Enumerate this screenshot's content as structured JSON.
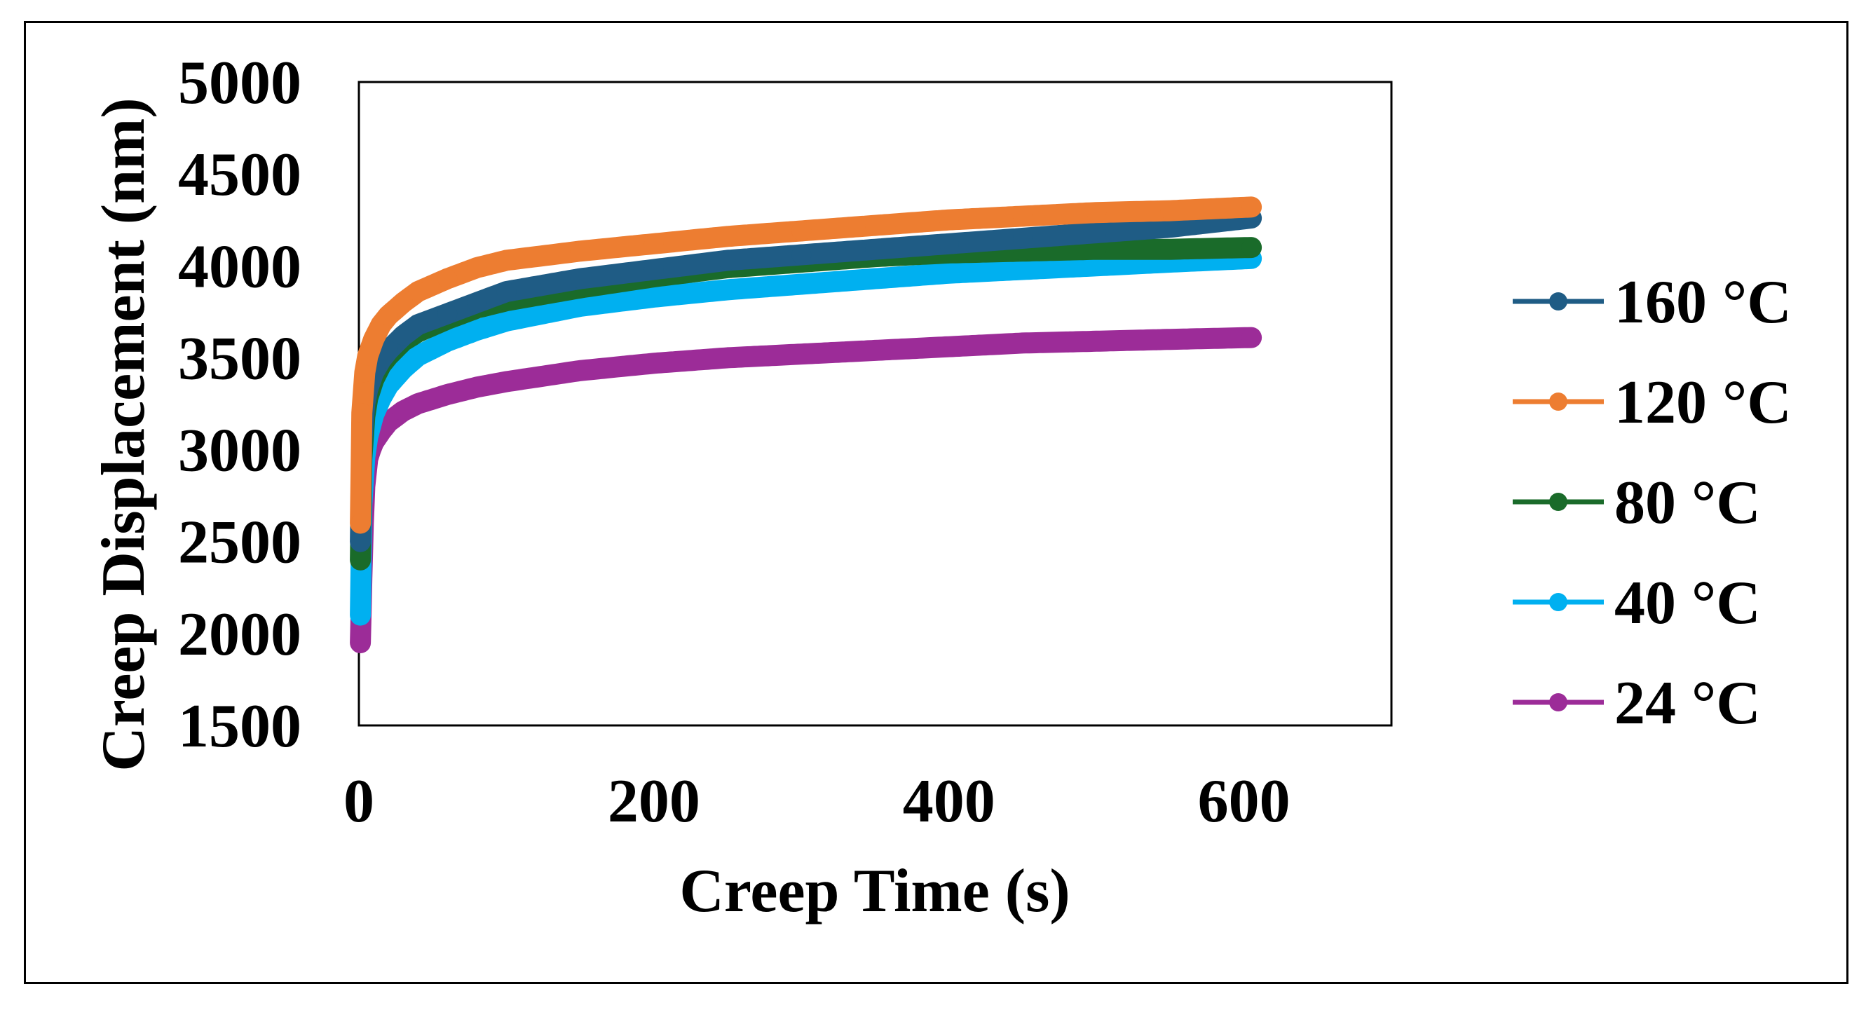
{
  "chart_data": {
    "type": "line",
    "xlabel": "Creep Time (s)",
    "ylabel": "Creep Displacement (nm)",
    "xlim": [
      0,
      700
    ],
    "ylim": [
      1500,
      5000
    ],
    "xticks": [
      0,
      200,
      400,
      600
    ],
    "yticks": [
      1500,
      2000,
      2500,
      3000,
      3500,
      4000,
      4500,
      5000
    ],
    "legend_position": "right",
    "grid": false,
    "series": [
      {
        "name": "160 °C",
        "color": "#1f5c85",
        "x": [
          1,
          2,
          4,
          6,
          10,
          15,
          20,
          30,
          40,
          60,
          80,
          100,
          150,
          200,
          250,
          300,
          350,
          400,
          450,
          500,
          550,
          605
        ],
        "y": [
          2500,
          3050,
          3250,
          3330,
          3420,
          3490,
          3540,
          3620,
          3680,
          3740,
          3800,
          3860,
          3930,
          3980,
          4030,
          4060,
          4090,
          4120,
          4150,
          4180,
          4210,
          4260
        ]
      },
      {
        "name": "120 °C",
        "color": "#ed7d31",
        "x": [
          1,
          2,
          4,
          6,
          10,
          15,
          20,
          30,
          40,
          60,
          80,
          100,
          150,
          200,
          250,
          300,
          350,
          400,
          450,
          500,
          550,
          605
        ],
        "y": [
          2600,
          3200,
          3420,
          3510,
          3600,
          3680,
          3730,
          3800,
          3860,
          3930,
          3990,
          4030,
          4080,
          4120,
          4160,
          4190,
          4220,
          4250,
          4270,
          4290,
          4300,
          4320
        ]
      },
      {
        "name": "80 °C",
        "color": "#1a6b2a",
        "x": [
          1,
          2,
          4,
          6,
          10,
          15,
          20,
          30,
          40,
          60,
          80,
          100,
          150,
          200,
          250,
          300,
          350,
          400,
          450,
          500,
          550,
          605
        ],
        "y": [
          2400,
          2950,
          3180,
          3280,
          3380,
          3460,
          3510,
          3590,
          3640,
          3710,
          3770,
          3810,
          3880,
          3940,
          3990,
          4020,
          4050,
          4070,
          4080,
          4090,
          4090,
          4100
        ]
      },
      {
        "name": "40 °C",
        "color": "#00b0f0",
        "x": [
          1,
          2,
          4,
          6,
          10,
          15,
          20,
          30,
          40,
          60,
          80,
          100,
          150,
          200,
          250,
          300,
          350,
          400,
          450,
          500,
          550,
          605
        ],
        "y": [
          2100,
          2700,
          2960,
          3070,
          3190,
          3280,
          3350,
          3440,
          3510,
          3590,
          3650,
          3700,
          3780,
          3830,
          3870,
          3900,
          3930,
          3960,
          3980,
          4000,
          4020,
          4040
        ]
      },
      {
        "name": "24 °C",
        "color": "#9c2c98",
        "x": [
          1,
          2,
          3,
          4,
          6,
          8,
          10,
          15,
          20,
          30,
          40,
          60,
          80,
          100,
          150,
          200,
          250,
          300,
          350,
          400,
          450,
          500,
          550,
          605
        ],
        "y": [
          1950,
          2300,
          2600,
          2800,
          2950,
          3000,
          3040,
          3100,
          3150,
          3210,
          3250,
          3300,
          3340,
          3370,
          3430,
          3470,
          3500,
          3520,
          3540,
          3560,
          3580,
          3590,
          3600,
          3610
        ]
      }
    ]
  }
}
